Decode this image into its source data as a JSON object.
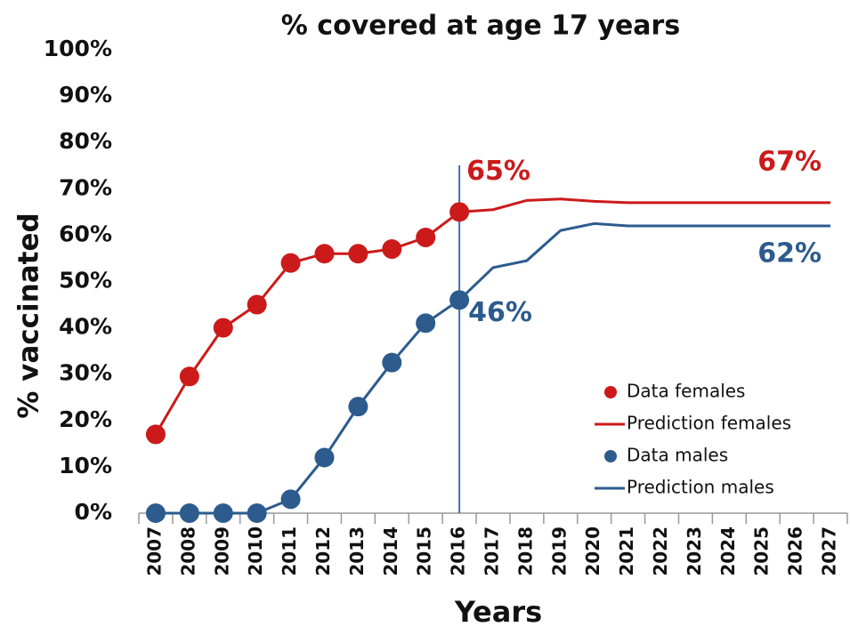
{
  "chart_data": {
    "type": "line",
    "title": "% covered at age 17 years",
    "x_label": "Years",
    "y_label": "% vaccinated",
    "categories": [
      "2007",
      "2008",
      "2009",
      "2010",
      "2011",
      "2012",
      "2013",
      "2014",
      "2015",
      "2016",
      "2017",
      "2018",
      "2019",
      "2020",
      "2021",
      "2022",
      "2023",
      "2024",
      "2025",
      "2026",
      "2027"
    ],
    "ylim": [
      0,
      100
    ],
    "yticks": [
      {
        "value": 0,
        "label": "0%"
      },
      {
        "value": 10,
        "label": "10%"
      },
      {
        "value": 20,
        "label": "20%"
      },
      {
        "value": 30,
        "label": "30%"
      },
      {
        "value": 40,
        "label": "40%"
      },
      {
        "value": 50,
        "label": "50%"
      },
      {
        "value": 60,
        "label": "60%"
      },
      {
        "value": 70,
        "label": "70%"
      },
      {
        "value": 80,
        "label": "80%"
      },
      {
        "value": 90,
        "label": "90%"
      },
      {
        "value": 100,
        "label": "100%"
      }
    ],
    "grid": false,
    "legend": "lower right",
    "vline": "2016",
    "series": [
      {
        "name": "Data females",
        "color": "#cc1a1a",
        "marker": true,
        "values": [
          17,
          29.5,
          40,
          45,
          54,
          56,
          56,
          57,
          59.5,
          65,
          null,
          null,
          null,
          null,
          null,
          null,
          null,
          null,
          null,
          null,
          null
        ],
        "value_labels": [
          null,
          null,
          null,
          null,
          null,
          null,
          null,
          null,
          null,
          "65%",
          null,
          null,
          null,
          null,
          null,
          null,
          null,
          null,
          null,
          null,
          null
        ]
      },
      {
        "name": "Prediction females",
        "color": "#cc1a1a",
        "marker": false,
        "values": [
          null,
          null,
          null,
          null,
          null,
          null,
          null,
          null,
          null,
          65,
          65.5,
          67.5,
          67.8,
          67.3,
          67,
          67,
          67,
          67,
          67,
          67,
          67
        ],
        "value_labels": [
          null,
          null,
          null,
          null,
          null,
          null,
          null,
          null,
          null,
          null,
          null,
          null,
          null,
          null,
          null,
          null,
          null,
          null,
          null,
          null,
          "67%"
        ]
      },
      {
        "name": "Data males",
        "color": "#2d5b8e",
        "marker": true,
        "values": [
          0,
          0,
          0,
          0,
          3,
          12,
          23,
          32.5,
          41,
          46,
          null,
          null,
          null,
          null,
          null,
          null,
          null,
          null,
          null,
          null,
          null
        ],
        "value_labels": [
          null,
          null,
          null,
          null,
          null,
          null,
          null,
          null,
          null,
          "46%",
          null,
          null,
          null,
          null,
          null,
          null,
          null,
          null,
          null,
          null,
          null
        ]
      },
      {
        "name": "Prediction males",
        "color": "#2d5b8e",
        "marker": false,
        "values": [
          null,
          null,
          null,
          null,
          null,
          null,
          null,
          null,
          null,
          46,
          53,
          54.5,
          61,
          62.5,
          62,
          62,
          62,
          62,
          62,
          62,
          62
        ],
        "value_labels": [
          null,
          null,
          null,
          null,
          null,
          null,
          null,
          null,
          null,
          null,
          null,
          null,
          null,
          null,
          null,
          null,
          null,
          null,
          null,
          null,
          "62%"
        ]
      }
    ]
  }
}
